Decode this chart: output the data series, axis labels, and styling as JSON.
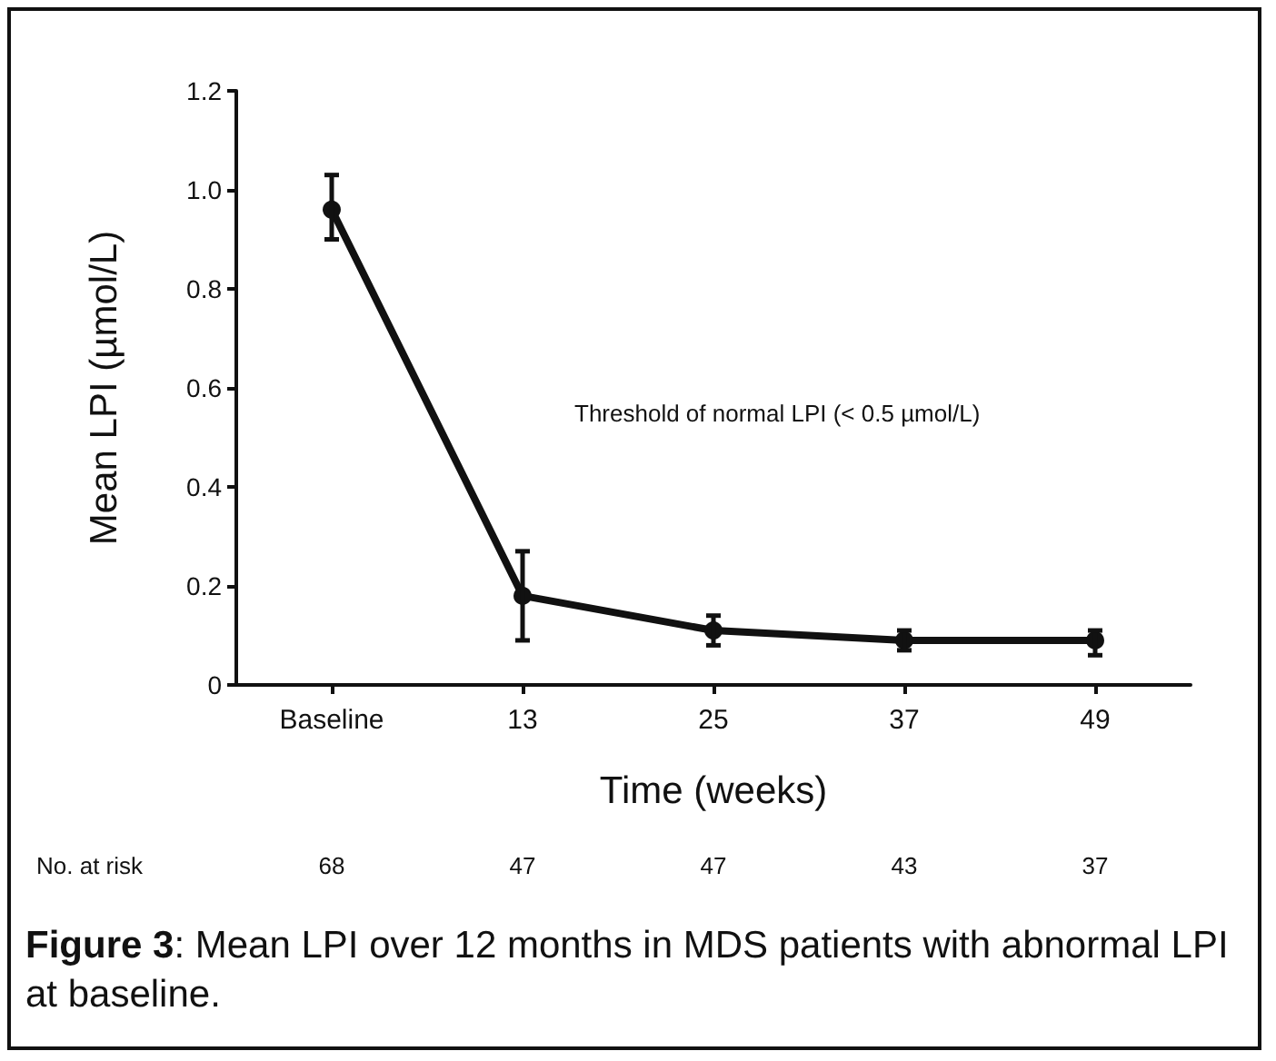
{
  "chart_data": {
    "type": "line",
    "xlabel": "Time (weeks)",
    "ylabel": "Mean LPI (µmol/L)",
    "categories": [
      "Baseline",
      "13",
      "25",
      "37",
      "49"
    ],
    "series": [
      {
        "color": "#111111",
        "values": [
          0.96,
          0.18,
          0.11,
          0.09,
          0.09
        ],
        "errors": [
          [
            0.9,
            1.03
          ],
          [
            0.09,
            0.27
          ],
          [
            0.08,
            0.14
          ],
          [
            0.07,
            0.11
          ],
          [
            0.06,
            0.11
          ]
        ]
      }
    ],
    "ylim": [
      0,
      1.2
    ],
    "yticks": [
      0,
      0.2,
      0.4,
      0.6,
      0.8,
      {
        "value": 1,
        "label": "1.0"
      },
      1.2
    ],
    "marker": "circle",
    "line_style": "solid",
    "grid": false,
    "annotations": [
      "Threshold of normal LPI (< 0.5 µmol/L)",
      "No. at risk",
      "68",
      "47",
      "47",
      "43",
      "37",
      "Figure 3: Mean LPI over 12 months in MDS patients with abnormal LPI at baseline."
    ]
  }
}
